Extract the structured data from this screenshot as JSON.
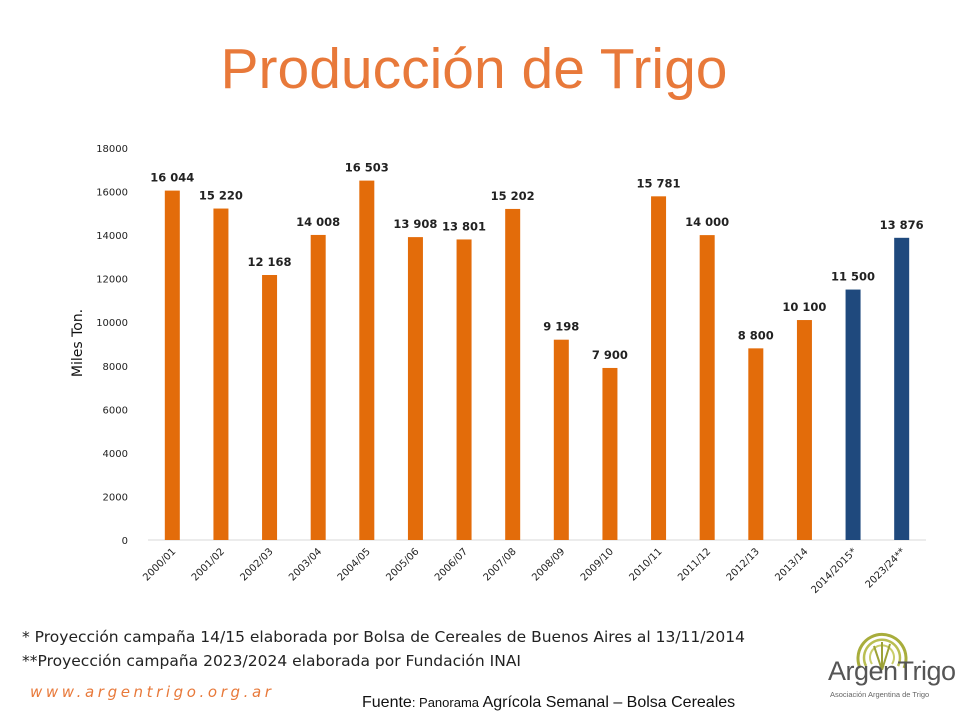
{
  "title": "Producción de Trigo",
  "chart_data": {
    "type": "bar",
    "categories": [
      "2000/01",
      "2001/02",
      "2002/03",
      "2003/04",
      "2004/05",
      "2005/06",
      "2006/07",
      "2007/08",
      "2008/09",
      "2009/10",
      "2010/11",
      "2011/12",
      "2012/13",
      "2013/14",
      "2014/2015*",
      "2023/24**"
    ],
    "values": [
      16044,
      15220,
      12168,
      14008,
      16503,
      13908,
      13801,
      15202,
      9198,
      7900,
      15781,
      14000,
      8800,
      10100,
      11500,
      13876
    ],
    "data_labels": [
      "16 044",
      "15 220",
      "12 168",
      "14 008",
      "16 503",
      "13 908",
      "13 801",
      "15 202",
      "9 198",
      "7 900",
      "15 781",
      "14 000",
      "8 800",
      "10 100",
      "11 500",
      "13 876"
    ],
    "colors": [
      "#E36C0A",
      "#E36C0A",
      "#E36C0A",
      "#E36C0A",
      "#E36C0A",
      "#E36C0A",
      "#E36C0A",
      "#E36C0A",
      "#E36C0A",
      "#E36C0A",
      "#E36C0A",
      "#E36C0A",
      "#E36C0A",
      "#E36C0A",
      "#1F497D",
      "#1F497D"
    ],
    "ylabel": "Miles Ton.",
    "xlabel": "",
    "ylim": [
      0,
      18000
    ],
    "yticks": [
      0,
      2000,
      4000,
      6000,
      8000,
      10000,
      12000,
      14000,
      16000,
      18000
    ],
    "grid": false,
    "legend": "none"
  },
  "notes": {
    "note1": "* Proyección campaña 14/15 elaborada por Bolsa de Cereales de Buenos Aires al 13/11/2014",
    "note2": "**Proyección campaña 2023/2024 elaborada por Fundación INAI"
  },
  "website": "www.argentrigo.org.ar",
  "source": {
    "prefix": "Fuente",
    "colon_small": ": Panorama",
    "rest": " Agrícola Semanal – Bolsa Cereales"
  },
  "logo": {
    "name": "ArgenTrigo",
    "subtitle": "Asociación Argentina de Trigo",
    "icon": "wheat-sun-icon"
  },
  "colors": {
    "title": "#E8793A",
    "orange_bar": "#E36C0A",
    "blue_bar": "#1F497D"
  }
}
